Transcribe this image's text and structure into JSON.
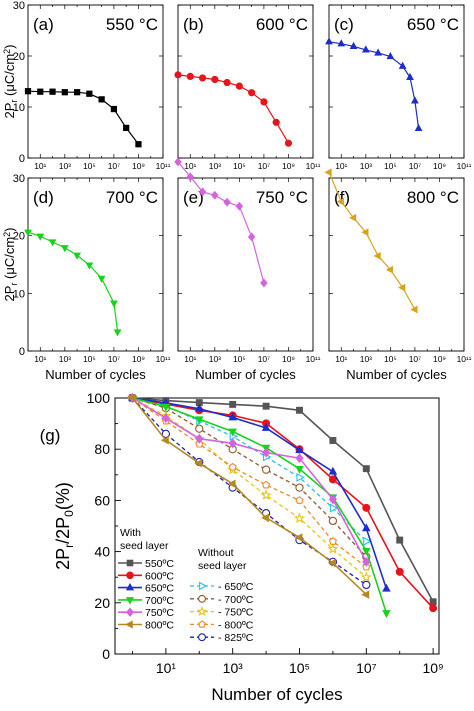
{
  "chart_data": [
    {
      "type": "line",
      "panel_label": "(a)",
      "temperature_label": "550 °C",
      "color": "#000000",
      "marker": "square",
      "x_scale": "log",
      "xlim": [
        1,
        100000000000.0
      ],
      "ylim": [
        0,
        30
      ],
      "x_ticks": [
        10,
        1000,
        100000,
        10000000,
        1000000000,
        100000000000
      ],
      "x_tick_labels": [
        "10¹",
        "10³",
        "10⁵",
        "10⁷",
        "10⁹",
        "10¹¹"
      ],
      "y_ticks": [
        0,
        10,
        20,
        30
      ],
      "y_tick_labels": [
        "0",
        "10",
        "20",
        "30"
      ],
      "ylabel": "2P",
      "ylabel_sub": "r",
      "ylabel_unit": "(μC/cm",
      "ylabel_sup": "2",
      "ylabel_close": ")",
      "xlabel": "",
      "series": [
        {
          "x": [
            1,
            10,
            100,
            1000,
            10000,
            100000,
            1000000,
            10000000,
            100000000,
            1000000000
          ],
          "y": [
            13.1,
            13.0,
            13.0,
            12.9,
            12.9,
            12.6,
            11.5,
            9.6,
            5.9,
            2.7
          ]
        }
      ]
    },
    {
      "type": "line",
      "panel_label": "(b)",
      "temperature_label": "600 °C",
      "color": "#e8141b",
      "marker": "circle",
      "x_scale": "log",
      "xlim": [
        1,
        100000000000.0
      ],
      "ylim": [
        0,
        30
      ],
      "x_ticks": [
        10,
        1000,
        100000,
        10000000,
        1000000000,
        100000000000
      ],
      "x_tick_labels": [
        "10¹",
        "10³",
        "10⁵",
        "10⁷",
        "10⁹",
        "10¹¹"
      ],
      "y_ticks": [
        0,
        10,
        20,
        30
      ],
      "y_tick_labels": [],
      "ylabel": "",
      "xlabel": "",
      "series": [
        {
          "x": [
            1,
            10,
            100,
            1000,
            10000,
            100000,
            1000000,
            10000000,
            100000000,
            1000000000
          ],
          "y": [
            16.3,
            16.0,
            15.7,
            15.4,
            14.8,
            14.1,
            12.8,
            11.0,
            7.0,
            2.9
          ]
        }
      ]
    },
    {
      "type": "line",
      "panel_label": "(c)",
      "temperature_label": "650 °C",
      "color": "#1d2ec9",
      "marker": "triangle-up",
      "x_scale": "log",
      "xlim": [
        1,
        100000000000.0
      ],
      "ylim": [
        0,
        30
      ],
      "x_ticks": [
        10,
        1000,
        100000,
        10000000,
        1000000000,
        100000000000
      ],
      "x_tick_labels": [
        "10¹",
        "10³",
        "10⁵",
        "10⁷",
        "10⁹",
        "10¹¹"
      ],
      "y_ticks": [
        0,
        10,
        20,
        30
      ],
      "y_tick_labels": [],
      "ylabel": "",
      "xlabel": "",
      "series": [
        {
          "x": [
            1,
            10,
            100,
            1000,
            10000,
            100000,
            1000000,
            4000000,
            10000000,
            20000000
          ],
          "y": [
            22.8,
            22.4,
            21.9,
            21.2,
            20.6,
            19.9,
            18.0,
            15.8,
            11.2,
            5.8
          ]
        }
      ]
    },
    {
      "type": "line",
      "panel_label": "(d)",
      "temperature_label": "700 °C",
      "color": "#19d21c",
      "marker": "triangle-down",
      "x_scale": "log",
      "xlim": [
        1,
        100000000000.0
      ],
      "ylim": [
        0,
        30
      ],
      "x_ticks": [
        10,
        1000,
        100000,
        10000000,
        1000000000,
        100000000000
      ],
      "x_tick_labels": [
        "10¹",
        "10³",
        "10⁵",
        "10⁷",
        "10⁹",
        "10¹¹"
      ],
      "y_ticks": [
        0,
        10,
        20,
        30
      ],
      "y_tick_labels": [
        "0",
        "10",
        "20",
        "30"
      ],
      "ylabel": "2P",
      "ylabel_sub": "r",
      "ylabel_unit": "(μC/cm",
      "ylabel_sup": "2",
      "ylabel_close": ")",
      "xlabel": "Number of cycles",
      "series": [
        {
          "x": [
            1,
            10,
            100,
            1000,
            10000,
            100000,
            1000000,
            10000000,
            20000000
          ],
          "y": [
            20.6,
            19.9,
            18.9,
            17.9,
            16.6,
            14.9,
            12.6,
            8.3,
            3.3
          ]
        }
      ]
    },
    {
      "type": "line",
      "panel_label": "(e)",
      "temperature_label": "750 °C",
      "color": "#d563dd",
      "marker": "diamond",
      "x_scale": "log",
      "xlim": [
        1,
        100000000000.0
      ],
      "ylim": [
        0,
        30
      ],
      "x_ticks": [
        10,
        1000,
        100000,
        10000000,
        1000000000,
        100000000000
      ],
      "x_tick_labels": [
        "10¹",
        "10³",
        "10⁵",
        "10⁷",
        "10⁹",
        "10¹¹"
      ],
      "y_ticks": [
        0,
        10,
        20,
        30
      ],
      "y_tick_labels": [],
      "ylabel": "",
      "xlabel": "Number of cycles",
      "series": [
        {
          "x": [
            1,
            10,
            100,
            1000,
            10000,
            100000,
            1000000,
            10000000
          ],
          "y": [
            32.8,
            30.2,
            27.6,
            27.0,
            25.8,
            25.1,
            19.8,
            11.8
          ]
        }
      ]
    },
    {
      "type": "line",
      "panel_label": "(f)",
      "temperature_label": "800 °C",
      "color": "#d9a21a",
      "marker": "triangle-left",
      "x_scale": "log",
      "xlim": [
        1,
        100000000000.0
      ],
      "ylim": [
        0,
        30
      ],
      "x_ticks": [
        10,
        1000,
        100000,
        10000000,
        1000000000,
        100000000000
      ],
      "x_tick_labels": [
        "10¹",
        "10³",
        "10⁵",
        "10⁷",
        "10⁹",
        "10¹¹"
      ],
      "y_ticks": [
        0,
        10,
        20,
        30
      ],
      "y_tick_labels": [],
      "ylabel": "",
      "xlabel": "Number of cycles",
      "series": [
        {
          "x": [
            1,
            10,
            100,
            1000,
            10000,
            100000,
            1000000,
            10000000
          ],
          "y": [
            31.0,
            25.9,
            23.1,
            20.6,
            16.5,
            14.1,
            11.0,
            7.2
          ]
        }
      ]
    },
    {
      "type": "line",
      "panel_label": "(g)",
      "x_scale": "log",
      "xlim": [
        0.3,
        1500000000.0
      ],
      "ylim": [
        0,
        100
      ],
      "x_ticks": [
        10,
        1000,
        100000,
        10000000,
        1000000000
      ],
      "x_tick_labels": [
        "10¹",
        "10³",
        "10⁵",
        "10⁷",
        "10⁹"
      ],
      "y_ticks": [
        0,
        20,
        40,
        60,
        80,
        100
      ],
      "y_tick_labels": [
        "0",
        "20",
        "40",
        "60",
        "80",
        "100"
      ],
      "xlabel": "Number of cycles",
      "ylabel": "2P",
      "ylabel_sub": "r",
      "ylabel_mid": "/2P",
      "ylabel_sub2": "0",
      "ylabel_unit": "(%)",
      "legend_title_with": [
        "With",
        "seed layer"
      ],
      "legend_title_without": [
        "Without",
        "seed layer"
      ],
      "series": [
        {
          "name": "550ºC",
          "group": "with",
          "color": "#555555",
          "marker": "square",
          "x": [
            1,
            10,
            100,
            1000,
            10000,
            100000,
            1000000,
            10000000,
            100000000,
            1000000000
          ],
          "y": [
            100,
            99,
            98.2,
            97.5,
            96.8,
            95.2,
            83.4,
            72.4,
            44.5,
            20.4
          ]
        },
        {
          "name": "600ºC",
          "group": "with",
          "color": "#e8141b",
          "marker": "circle",
          "x": [
            1,
            10,
            100,
            1000,
            10000,
            100000,
            1000000,
            10000000,
            100000000,
            1000000000
          ],
          "y": [
            100,
            97.6,
            95.2,
            93.2,
            90.1,
            80.0,
            68.2,
            57.1,
            32.1,
            17.9
          ]
        },
        {
          "name": "650ºC",
          "group": "with",
          "color": "#1d2ec9",
          "marker": "triangle-up",
          "x": [
            1,
            10,
            100,
            1000,
            10000,
            100000,
            1000000,
            10000000,
            40000000
          ],
          "y": [
            100,
            98.1,
            95.8,
            92.4,
            88.3,
            79.6,
            71.2,
            49.1,
            25.5
          ]
        },
        {
          "name": "700ºC",
          "group": "with",
          "color": "#19d21c",
          "marker": "triangle-down",
          "x": [
            1,
            10,
            100,
            1000,
            10000,
            100000,
            1000000,
            10000000,
            40000000
          ],
          "y": [
            100,
            96.6,
            91.7,
            86.9,
            80.6,
            72.3,
            61.2,
            40.3,
            16.0
          ]
        },
        {
          "name": "750ºC",
          "group": "with",
          "color": "#d563dd",
          "marker": "diamond",
          "x": [
            1,
            10,
            100,
            1000,
            10000,
            100000,
            1000000,
            10000000
          ],
          "y": [
            100,
            92.1,
            84.1,
            82.3,
            78.7,
            76.5,
            60.4,
            36.0
          ]
        },
        {
          "name": "800ºC",
          "group": "with",
          "color": "#b5891f",
          "marker": "triangle-left",
          "x": [
            1,
            10,
            100,
            1000,
            10000,
            100000,
            1000000,
            10000000
          ],
          "y": [
            100,
            83.5,
            74.5,
            66.5,
            53.2,
            45.5,
            35.5,
            23.2
          ]
        },
        {
          "name": "650ºC",
          "group": "without",
          "color": "#24c3e6",
          "marker": "open-triangle-right",
          "x": [
            1,
            10,
            100,
            1000,
            10000,
            100000,
            1000000,
            10000000
          ],
          "y": [
            100,
            97,
            91,
            85,
            77,
            69,
            57,
            44
          ]
        },
        {
          "name": "700ºC",
          "group": "without",
          "color": "#8b5a2b",
          "marker": "open-circle",
          "x": [
            1,
            10,
            100,
            1000,
            10000,
            100000,
            1000000,
            10000000
          ],
          "y": [
            100,
            96,
            88,
            80,
            72,
            65,
            52,
            38
          ]
        },
        {
          "name": "750ºC",
          "group": "without",
          "color": "#e6c619",
          "marker": "open-star",
          "x": [
            1,
            10,
            100,
            1000,
            10000,
            100000,
            1000000,
            10000000
          ],
          "y": [
            100,
            93,
            84,
            72,
            62,
            53,
            41,
            30
          ]
        },
        {
          "name": "800ºC",
          "group": "without",
          "color": "#f08a24",
          "marker": "open-pentagon",
          "x": [
            1,
            10,
            100,
            1000,
            10000,
            100000,
            1000000,
            10000000
          ],
          "y": [
            100,
            91,
            82,
            73,
            66,
            60,
            44,
            34
          ]
        },
        {
          "name": "825ºC",
          "group": "without",
          "color": "#1a21a8",
          "marker": "open-circle",
          "x": [
            1,
            10,
            100,
            1000,
            10000,
            100000,
            1000000,
            10000000
          ],
          "y": [
            100,
            86,
            75,
            65,
            55,
            44.5,
            36,
            27
          ]
        }
      ]
    }
  ]
}
